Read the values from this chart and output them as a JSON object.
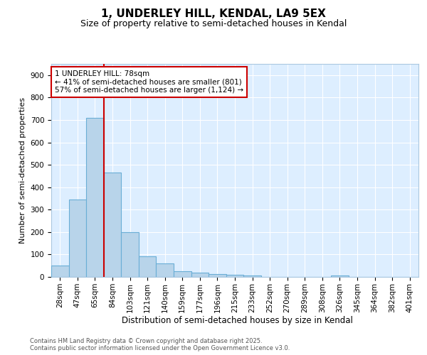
{
  "title": "1, UNDERLEY HILL, KENDAL, LA9 5EX",
  "subtitle": "Size of property relative to semi-detached houses in Kendal",
  "xlabel": "Distribution of semi-detached houses by size in Kendal",
  "ylabel": "Number of semi-detached properties",
  "bar_labels": [
    "28sqm",
    "47sqm",
    "65sqm",
    "84sqm",
    "103sqm",
    "121sqm",
    "140sqm",
    "159sqm",
    "177sqm",
    "196sqm",
    "215sqm",
    "233sqm",
    "252sqm",
    "270sqm",
    "289sqm",
    "308sqm",
    "326sqm",
    "345sqm",
    "364sqm",
    "382sqm",
    "401sqm"
  ],
  "bar_values": [
    50,
    345,
    710,
    465,
    200,
    93,
    60,
    26,
    20,
    14,
    10,
    5,
    0,
    0,
    0,
    0,
    7,
    0,
    0,
    0,
    0
  ],
  "bar_color": "#b8d4ea",
  "bar_edge_color": "#6aaed6",
  "vline_position": 2.5,
  "vline_color": "#cc0000",
  "annotation_line1": "1 UNDERLEY HILL: 78sqm",
  "annotation_line2": "← 41% of semi-detached houses are smaller (801)",
  "annotation_line3": "57% of semi-detached houses are larger (1,124) →",
  "annotation_box_edge_color": "#cc0000",
  "ylim": [
    0,
    950
  ],
  "yticks": [
    0,
    100,
    200,
    300,
    400,
    500,
    600,
    700,
    800,
    900
  ],
  "background_color": "#ddeeff",
  "grid_color": "#ffffff",
  "fig_background": "#ffffff",
  "footer_line1": "Contains HM Land Registry data © Crown copyright and database right 2025.",
  "footer_line2": "Contains public sector information licensed under the Open Government Licence v3.0.",
  "title_fontsize": 11,
  "subtitle_fontsize": 9,
  "tick_fontsize": 7.5,
  "ylabel_fontsize": 8,
  "xlabel_fontsize": 8.5,
  "annotation_fontsize": 7.5,
  "footer_fontsize": 6
}
